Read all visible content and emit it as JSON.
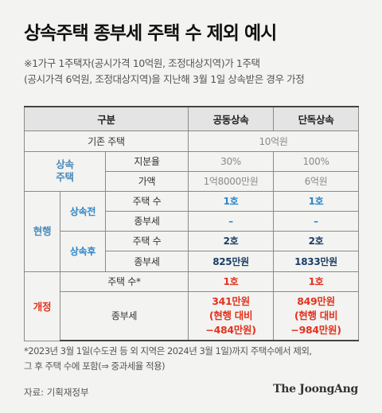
{
  "title": "상속주택 종부세 주택 수 제외 예시",
  "subtitle": {
    "line1": "※1가구 1주택자(공시가격 10억원, 조정대상지역)가 1주택",
    "line2": "(공시가격 6억원, 조정대상지역)을 지난해 3월 1일 상속받은 경우 가정"
  },
  "table": {
    "header": {
      "col1": "구분",
      "col2": "공동상속",
      "col3": "단독상속"
    },
    "existing_label": "기존 주택",
    "existing_value": "10억원",
    "inheritance_label_1": "상속",
    "inheritance_label_2": "주택",
    "share_label": "지분율",
    "share_joint": "30%",
    "share_sole": "100%",
    "price_label": "가액",
    "price_joint": "1억8000만원",
    "price_sole": "6억원",
    "current_label": "현행",
    "before_label": "상속전",
    "before_count_label": "주택 수",
    "before_count_joint": "1호",
    "before_count_sole": "1호",
    "before_tax_label": "종부세",
    "before_tax_joint": "–",
    "before_tax_sole": "–",
    "after_label": "상속후",
    "after_count_label": "주택 수",
    "after_count_joint": "2호",
    "after_count_sole": "2호",
    "after_tax_label": "종부세",
    "after_tax_joint": "825만원",
    "after_tax_sole": "1833만원",
    "revised_label": "개정",
    "revised_count_label": "주택 수*",
    "revised_count_joint": "1호",
    "revised_count_sole": "1호",
    "revised_tax_label": "종부세",
    "revised_tax_joint_1": "341만원",
    "revised_tax_joint_2": "(현행 대비",
    "revised_tax_joint_3": "−484만원)",
    "revised_tax_sole_1": "849만원",
    "revised_tax_sole_2": "(현행 대비",
    "revised_tax_sole_3": "−984만원)"
  },
  "footnote": {
    "line1": "*2023년 3월 1일(수도권 등 외 지역은 2024년 3월 1일)까지 주택수에서 제외,",
    "line2": "그 후 주택 수에 포함(⇒ 중과세율 적용)"
  },
  "source": "자료: 기획재정부",
  "brand": "The JoongAng",
  "colors": {
    "blue": "#2d86c8",
    "navy": "#1c3e66",
    "red": "#e2321d",
    "background": "#f3f3f1"
  }
}
